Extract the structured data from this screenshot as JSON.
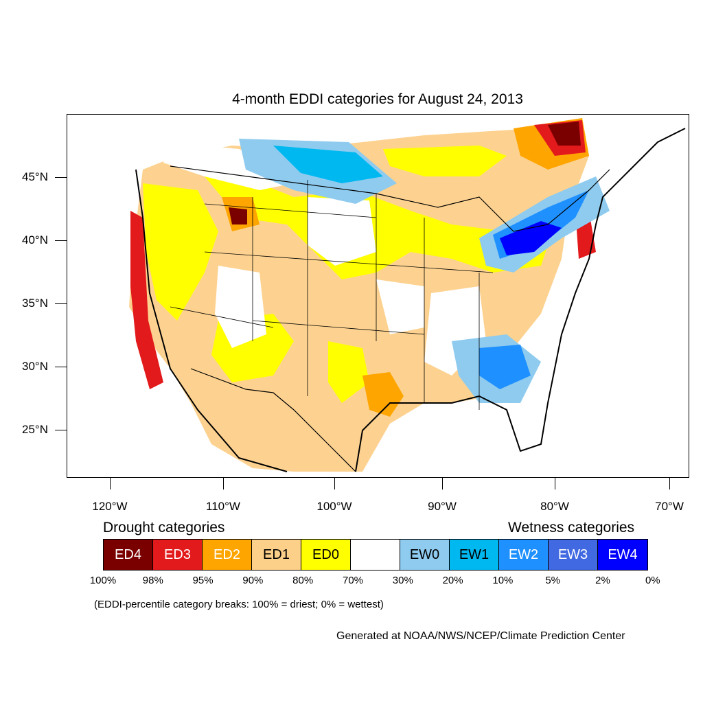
{
  "title": "4-month EDDI categories for August 24, 2013",
  "axes": {
    "latitude_ticks": [
      "45°N",
      "40°N",
      "35°N",
      "30°N",
      "25°N"
    ],
    "longitude_ticks": [
      "120°W",
      "110°W",
      "100°W",
      "90°W",
      "80°W",
      "70°W"
    ]
  },
  "legend": {
    "drought_heading": "Drought categories",
    "wetness_heading": "Wetness categories",
    "categories": [
      {
        "label": "ED4",
        "color": "#7a0000",
        "text_color": "#ffffff"
      },
      {
        "label": "ED3",
        "color": "#e31a1c",
        "text_color": "#ffffff"
      },
      {
        "label": "ED2",
        "color": "#ffa500",
        "text_color": "#ffffff"
      },
      {
        "label": "ED1",
        "color": "#fdd08a",
        "text_color": "#000000"
      },
      {
        "label": "ED0",
        "color": "#ffff00",
        "text_color": "#000000"
      },
      {
        "label": "",
        "color": "#ffffff",
        "text_color": "#000000"
      },
      {
        "label": "EW0",
        "color": "#8ecbef",
        "text_color": "#000000"
      },
      {
        "label": "EW1",
        "color": "#00b8f0",
        "text_color": "#000000"
      },
      {
        "label": "EW2",
        "color": "#1e90ff",
        "text_color": "#ffffff"
      },
      {
        "label": "EW3",
        "color": "#4169e1",
        "text_color": "#ffffff"
      },
      {
        "label": "EW4",
        "color": "#0000ff",
        "text_color": "#ffffff"
      }
    ],
    "percentiles": [
      "100%",
      "98%",
      "95%",
      "90%",
      "80%",
      "70%",
      "30%",
      "20%",
      "10%",
      "5%",
      "2%",
      "0%"
    ]
  },
  "note": "(EDDI-percentile category breaks: 100% = driest; 0% = wettest)",
  "credit": "Generated at NOAA/NWS/NCEP/Climate Prediction Center"
}
